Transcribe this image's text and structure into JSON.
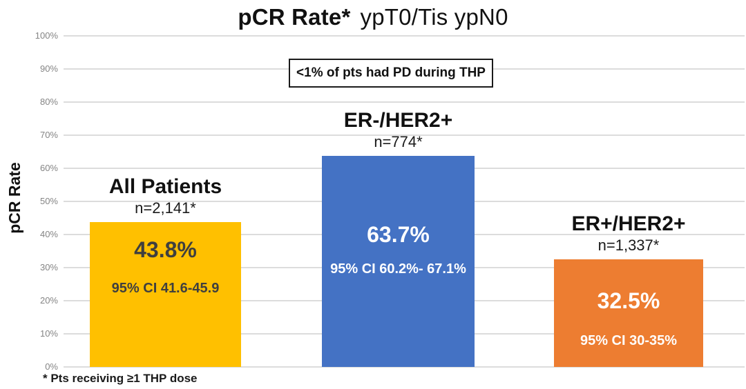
{
  "title": {
    "main": "pCR Rate*",
    "sub": "ypT0/Tis ypN0"
  },
  "annotation": "<1% of pts had PD during THP",
  "y_axis": {
    "label": "pCR Rate",
    "ticks": [
      "100%",
      "90%",
      "80%",
      "70%",
      "60%",
      "50%",
      "40%",
      "30%",
      "20%",
      "10%",
      "0%"
    ]
  },
  "footnote": "* Pts receiving ≥1 THP dose",
  "colors": {
    "gridline": "#dcdcdc",
    "tick_text": "#848484"
  },
  "chart_data": {
    "type": "bar",
    "title": "pCR Rate* ypT0/Tis ypN0",
    "xlabel": "",
    "ylabel": "pCR Rate",
    "ylim": [
      0,
      100
    ],
    "grid": true,
    "categories": [
      "All Patients",
      "ER-/HER2+",
      "ER+/HER2+"
    ],
    "values": [
      43.8,
      63.7,
      32.5
    ],
    "annotation": "<1% of pts had PD during THP",
    "bars": [
      {
        "label": "All Patients",
        "n": "n=2,141*",
        "value": 43.8,
        "value_label": "43.8%",
        "ci": "95% CI 41.6-45.9",
        "color": "#FFC000",
        "text_color": "#3F3F3F"
      },
      {
        "label": "ER-/HER2+",
        "n": "n=774*",
        "value": 63.7,
        "value_label": "63.7%",
        "ci": "95% CI 60.2%- 67.1%",
        "color": "#4472C4",
        "text_color": "#FFFFFF"
      },
      {
        "label": "ER+/HER2+",
        "n": "n=1,337*",
        "value": 32.5,
        "value_label": "32.5%",
        "ci": "95% CI 30-35%",
        "color": "#ED7D31",
        "text_color": "#FFFFFF"
      }
    ]
  }
}
